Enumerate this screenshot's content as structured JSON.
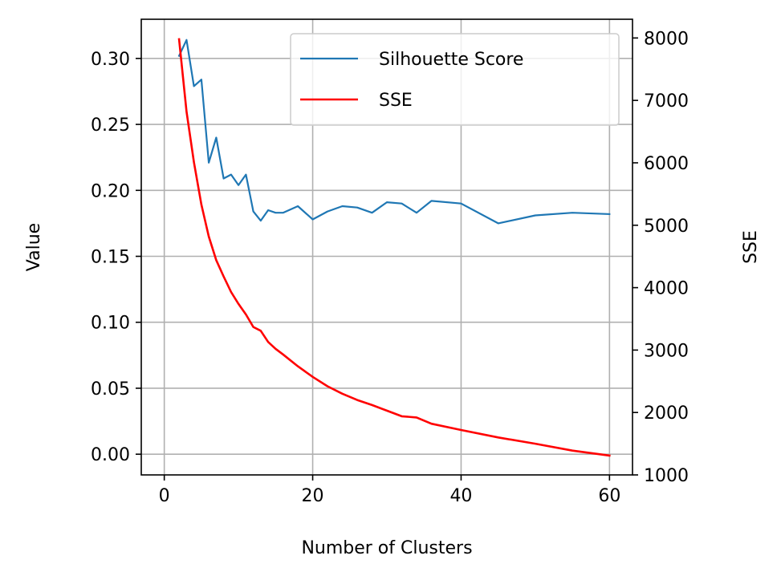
{
  "chart_data": {
    "type": "line",
    "xlabel": "Number of Clusters",
    "ylabel": "Value",
    "y2label": "SSE",
    "xlim": [
      -3.1,
      63.1
    ],
    "ylim": [
      -0.0157,
      0.3297
    ],
    "y2lim": [
      1000,
      8300
    ],
    "xticks": [
      0,
      20,
      40,
      60
    ],
    "yticks": [
      0.0,
      0.05,
      0.1,
      0.15,
      0.2,
      0.25,
      0.3
    ],
    "y2ticks": [
      1000,
      2000,
      3000,
      4000,
      5000,
      6000,
      7000,
      8000
    ],
    "grid": true,
    "legend_position": "top-right",
    "series": [
      {
        "name": "Silhouette Score",
        "axis": "left",
        "color": "#1f77b4",
        "x": [
          2,
          3,
          4,
          5,
          6,
          7,
          8,
          9,
          10,
          11,
          12,
          13,
          14,
          15,
          16,
          18,
          20,
          22,
          24,
          26,
          28,
          30,
          32,
          34,
          36,
          40,
          45,
          50,
          55,
          60
        ],
        "values": [
          0.302,
          0.314,
          0.279,
          0.284,
          0.221,
          0.24,
          0.209,
          0.212,
          0.204,
          0.212,
          0.184,
          0.177,
          0.185,
          0.183,
          0.183,
          0.188,
          0.178,
          0.184,
          0.188,
          0.187,
          0.183,
          0.191,
          0.19,
          0.183,
          0.192,
          0.19,
          0.175,
          0.181,
          0.183,
          0.182
        ]
      },
      {
        "name": "SSE",
        "axis": "right",
        "color": "#ff0000",
        "x": [
          2,
          3,
          4,
          5,
          6,
          7,
          8,
          9,
          10,
          11,
          12,
          13,
          14,
          15,
          16,
          18,
          20,
          22,
          24,
          26,
          28,
          30,
          32,
          34,
          36,
          40,
          45,
          50,
          55,
          60
        ],
        "values": [
          7980,
          6820,
          6010,
          5330,
          4820,
          4440,
          4180,
          3930,
          3740,
          3570,
          3370,
          3310,
          3130,
          3020,
          2930,
          2740,
          2570,
          2420,
          2300,
          2200,
          2120,
          2030,
          1940,
          1920,
          1820,
          1720,
          1600,
          1500,
          1390,
          1310
        ]
      }
    ]
  }
}
